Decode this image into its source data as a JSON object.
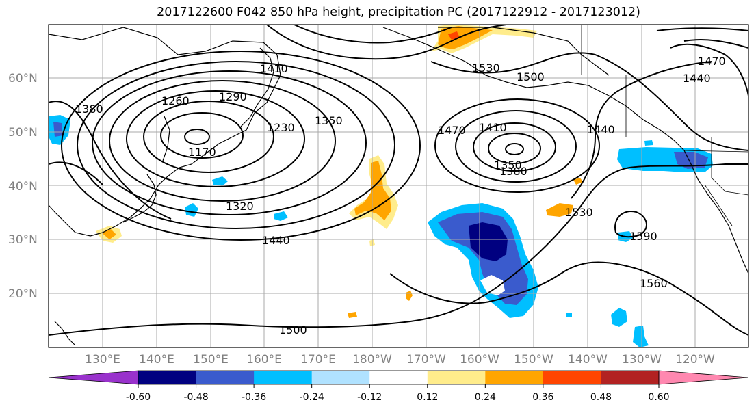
{
  "title": "2017122600 F042 850 hPa height, precipitation PC (2017122912 - 2017123012)",
  "map": {
    "lat_labels": [
      "60°N",
      "50°N",
      "40°N",
      "30°N",
      "20°N"
    ],
    "lon_labels": [
      "130°E",
      "140°E",
      "150°E",
      "160°E",
      "170°E",
      "180°W",
      "170°W",
      "160°W",
      "150°W",
      "140°W",
      "130°W",
      "120°W"
    ],
    "contour_labels": [
      "1260",
      "1290",
      "1230",
      "1350",
      "1170",
      "1410",
      "1470",
      "1410",
      "1350",
      "1380",
      "1440",
      "1320",
      "1440",
      "1530",
      "1590",
      "1560",
      "1500",
      "1470",
      "1380",
      "1530",
      "1500",
      "1440"
    ]
  },
  "colorbar": {
    "colors": [
      "#9932cc",
      "#000080",
      "#3a5bcd",
      "#00bfff",
      "#b0e2ff",
      "#ffffff",
      "#ffec8b",
      "#ffa500",
      "#ff4500",
      "#b22222",
      "#ff88b0"
    ],
    "tick_labels": [
      "-0.60",
      "-0.48",
      "-0.36",
      "-0.24",
      "-0.12",
      "0.12",
      "0.24",
      "0.36",
      "0.48",
      "0.60"
    ]
  }
}
